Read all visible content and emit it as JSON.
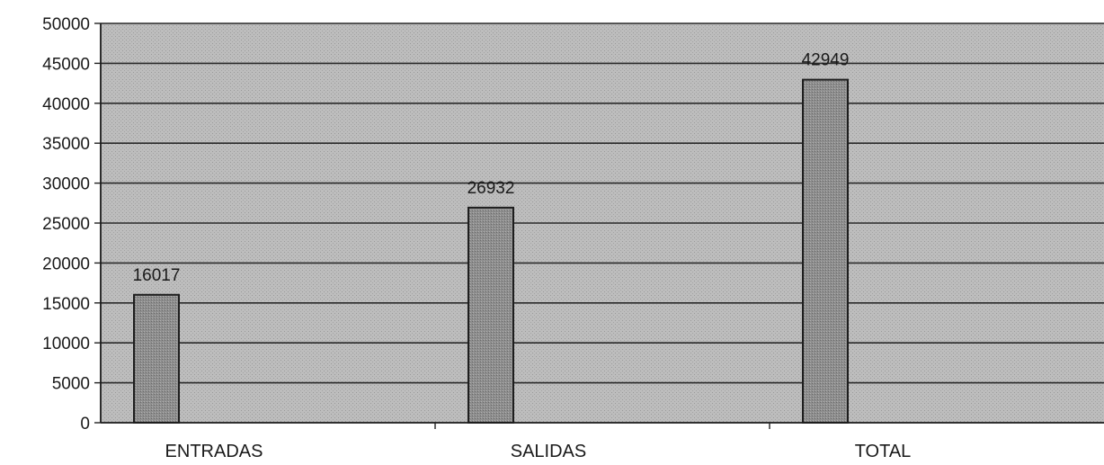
{
  "chart_data": {
    "type": "bar",
    "title": "",
    "xlabel": "",
    "ylabel": "",
    "categories": [
      "ENTRADAS",
      "SALIDAS",
      "TOTAL"
    ],
    "values": [
      16017,
      26932,
      42949
    ],
    "data_labels": [
      "16017",
      "26932",
      "42949"
    ],
    "ylim": [
      0,
      50000
    ],
    "yticks": [
      0,
      5000,
      10000,
      15000,
      20000,
      25000,
      30000,
      35000,
      40000,
      45000,
      50000
    ],
    "ytick_labels": [
      "0",
      "5000",
      "10000",
      "15000",
      "20000",
      "25000",
      "30000",
      "35000",
      "40000",
      "45000",
      "50000"
    ],
    "grid": true,
    "legend": "none",
    "colors": {
      "plot_background": "#b9b9b9",
      "bar_fill": "#8c8c8c",
      "bar_edge": "#1e1e1e",
      "gridline": "#2a2a2a"
    }
  }
}
